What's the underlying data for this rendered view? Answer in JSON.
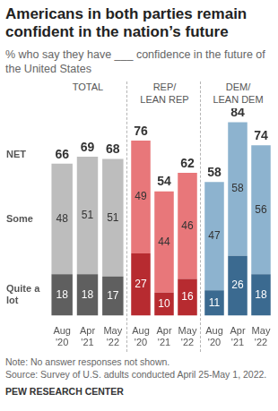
{
  "title": "Americans in both parties remain confident in the nation’s future",
  "subtitle": "% who say they have ___ confidence in the future of the United States",
  "total_label": "NET",
  "note": "Note: No answer responses not shown.",
  "source": "Source: Survey of U.S. adults conducted April 25-May 1, 2022.",
  "credit": "PEW RESEARCH CENTER",
  "chart_data": [
    {
      "type": "bar",
      "title": "TOTAL",
      "categories": [
        "Aug '20",
        "Apr '21",
        "May '22"
      ],
      "stacked": true,
      "data_labels": true,
      "tick_labels": "x",
      "grid": false,
      "ylim": [
        0,
        90
      ],
      "series": [
        {
          "name": "Quite a lot",
          "color": "#5f5f5f",
          "values": [
            18,
            18,
            17
          ]
        },
        {
          "name": "Some",
          "color": "#bdbdbd",
          "values": [
            48,
            51,
            51
          ]
        }
      ],
      "totals": [
        66,
        69,
        68
      ]
    },
    {
      "type": "bar",
      "title": "REP/\nLEAN REP",
      "categories": [
        "Aug '20",
        "Apr '21",
        "May '22"
      ],
      "stacked": true,
      "data_labels": true,
      "tick_labels": "x",
      "grid": false,
      "ylim": [
        0,
        90
      ],
      "series": [
        {
          "name": "Quite a lot",
          "color": "#b72b30",
          "values": [
            27,
            10,
            16
          ]
        },
        {
          "name": "Some",
          "color": "#e8777a",
          "values": [
            49,
            44,
            46
          ]
        }
      ],
      "totals": [
        76,
        54,
        62
      ]
    },
    {
      "type": "bar",
      "title": "DEM/\nLEAN DEM",
      "categories": [
        "Aug '20",
        "Apr '21",
        "May '22"
      ],
      "stacked": true,
      "data_labels": true,
      "tick_labels": "x",
      "grid": false,
      "ylim": [
        0,
        90
      ],
      "series": [
        {
          "name": "Quite a lot",
          "color": "#3b6a90",
          "values": [
            11,
            26,
            18
          ]
        },
        {
          "name": "Some",
          "color": "#8db3cf",
          "values": [
            47,
            58,
            56
          ]
        }
      ],
      "totals": [
        58,
        84,
        74
      ]
    }
  ]
}
